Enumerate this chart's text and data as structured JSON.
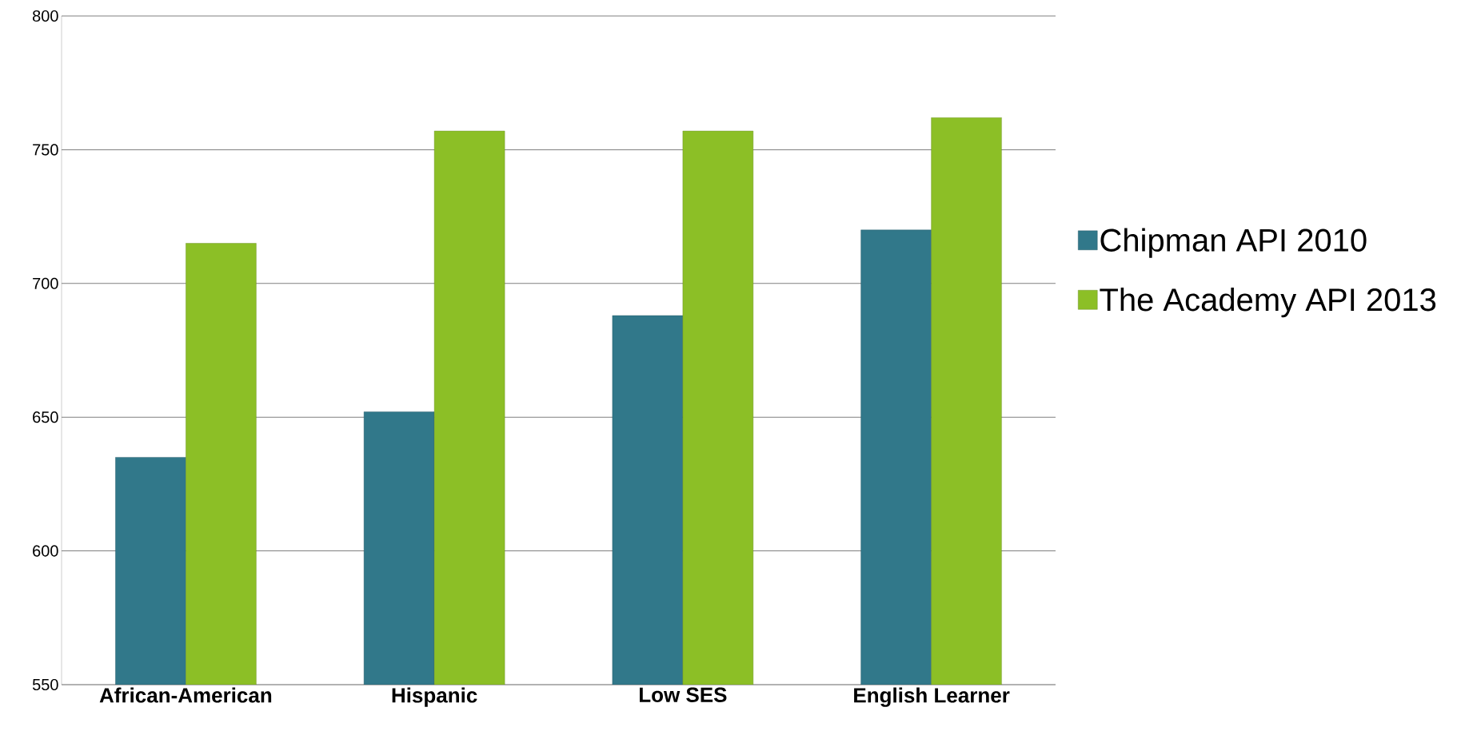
{
  "chart_data": {
    "type": "bar",
    "categories": [
      "African-American",
      "Hispanic",
      "Low SES",
      "English Learner"
    ],
    "series": [
      {
        "name": "Chipman API 2010",
        "color": "#31788a",
        "values": [
          635,
          652,
          688,
          720
        ]
      },
      {
        "name": "The Academy API 2013",
        "color": "#8cbf26",
        "values": [
          715,
          757,
          757,
          762
        ]
      }
    ],
    "ylim": [
      550,
      800
    ],
    "yticks": [
      550,
      600,
      650,
      700,
      750,
      800
    ],
    "grid": "y",
    "legend": "right"
  }
}
